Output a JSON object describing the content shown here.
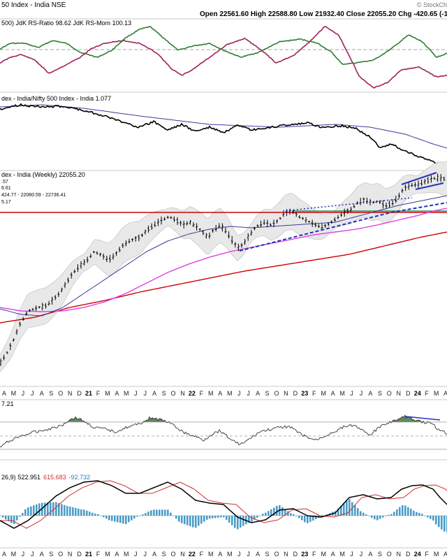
{
  "header": {
    "title": "50 Index - India  NSE",
    "ohlc": "Open 22561.60  High 22588.80  Low 21932.40  Close 22055.20  Chg -420.65 (-1",
    "watermark": "© StockCh"
  },
  "colors": {
    "price_bar": "#000000",
    "red_line": "#cc0000",
    "green_line": "#2e8b57",
    "blue_line": "#3b3b9a",
    "magenta_line": "#e040e0",
    "bollinger_fill": "#e8e8e8",
    "trendline": "#2233bb",
    "macd_hist": "#4a9cc8",
    "macd_signal": "#d03030",
    "rsi_fill": "#5e8a5e",
    "rs_ratio": "#a0205a",
    "rs_mom": "#2e7d32"
  },
  "chart_data": [
    {
      "panel": "rrg",
      "type": "line",
      "legend": "500)  JdK RS-Ratio 98.62  JdK RS-Mom 100.13",
      "series": [
        {
          "name": "JdK RS-Ratio",
          "last": 98.62
        },
        {
          "name": "JdK RS-Mom",
          "last": 100.13
        }
      ]
    },
    {
      "panel": "relative",
      "type": "line",
      "legend": "dex - India/Nifty 500 Index - India 1.077",
      "series": [
        {
          "name": "Index - India/Nifty 500 Index - India",
          "last": 1.077
        }
      ]
    },
    {
      "panel": "price",
      "type": "bar",
      "legend": "dex - India (Weekly) 22055.20",
      "last_close": 22055.2,
      "legend_values": [
        ".57",
        "6.61",
        "424.77 - 22080.59 - 22736.41",
        "5.17"
      ]
    },
    {
      "panel": "rsi",
      "type": "line",
      "legend": "7.21",
      "levels": [
        70,
        30
      ]
    },
    {
      "panel": "macd",
      "type": "line",
      "legend_prefix": "26,9)",
      "macd": 522.951,
      "signal": 615.683,
      "histogram": -92.732,
      "macd_label": "522.951",
      "signal_label": "615.683",
      "hist_label": "-92.732"
    }
  ],
  "x_axis": {
    "ticks_top": [
      "A",
      "M",
      "J",
      "J",
      "A",
      "S",
      "O",
      "N",
      "D",
      "21",
      "F",
      "M",
      "A",
      "M",
      "J",
      "J",
      "A",
      "S",
      "O",
      "N",
      "22",
      "F",
      "M",
      "A",
      "M",
      "J",
      "J",
      "A",
      "S",
      "O",
      "N",
      "D",
      "23",
      "F",
      "M",
      "A",
      "M",
      "J",
      "J",
      "A",
      "S",
      "O",
      "N",
      "D",
      "24",
      "F",
      "M",
      "A"
    ],
    "ticks_bottom": [
      "A",
      "M",
      "J",
      "J",
      "A",
      "S",
      "O",
      "N",
      "D",
      "21",
      "F",
      "M",
      "A",
      "M",
      "J",
      "J",
      "A",
      "S",
      "O",
      "N",
      "22",
      "F",
      "M",
      "A",
      "M",
      "J",
      "J",
      "A",
      "S",
      "O",
      "N",
      "D",
      "23",
      "F",
      "M",
      "A",
      "M",
      "J",
      "J",
      "A",
      "S",
      "O",
      "N",
      "D",
      "24",
      "F",
      "M",
      "A"
    ],
    "bold": [
      "21",
      "22",
      "23",
      "24"
    ]
  }
}
